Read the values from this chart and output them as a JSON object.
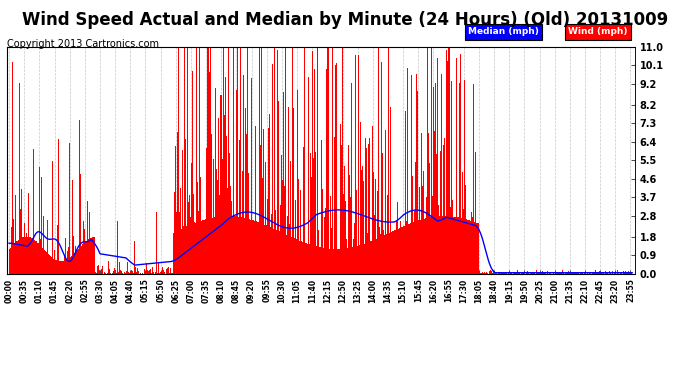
{
  "title": "Wind Speed Actual and Median by Minute (24 Hours) (Old) 20131009",
  "copyright": "Copyright 2013 Cartronics.com",
  "yticks": [
    0.0,
    0.9,
    1.8,
    2.8,
    3.7,
    4.6,
    5.5,
    6.4,
    7.3,
    8.2,
    9.2,
    10.1,
    11.0
  ],
  "ylim": [
    0,
    11.0
  ],
  "bar_color": "#ff0000",
  "line_color": "#0000ff",
  "background_color": "#ffffff",
  "grid_color": "#c8c8c8",
  "legend_median_color": "#0000ff",
  "legend_wind_color": "#ff0000",
  "title_fontsize": 12,
  "copyright_fontsize": 7,
  "total_minutes": 1440,
  "wind_off_minute": 1085
}
